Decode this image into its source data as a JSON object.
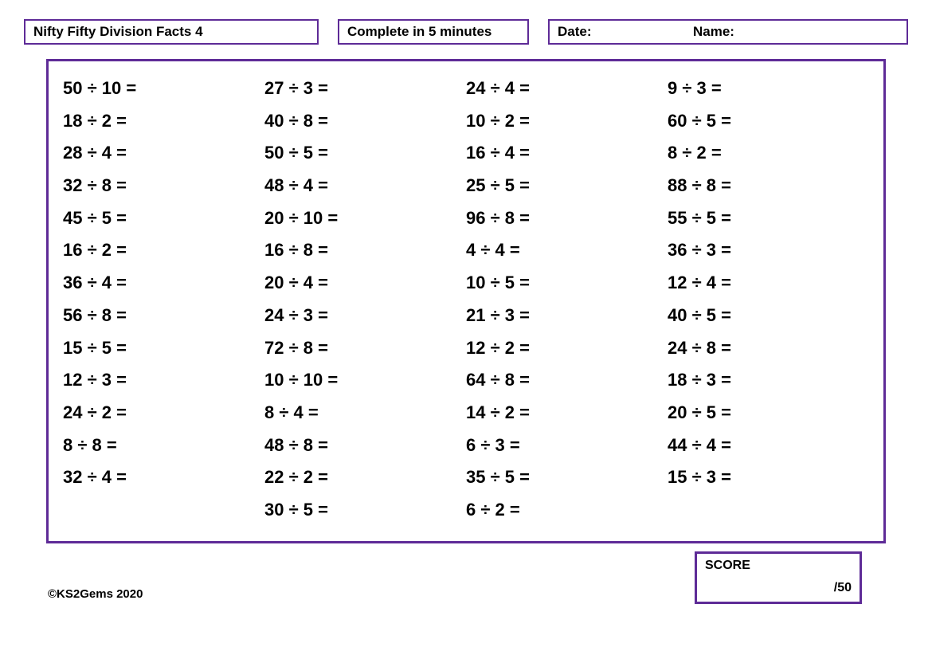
{
  "header": {
    "title": "Nifty Fifty Division Facts 4",
    "timer": "Complete in 5 minutes",
    "date_label": "Date:",
    "name_label": "Name:"
  },
  "worksheet": {
    "border_color": "#5e2b97",
    "background_color": "#ffffff",
    "text_color": "#000000",
    "font_family": "Comic Sans MS",
    "problem_fontsize": 22,
    "division_sign": "÷",
    "equals_sign": "=",
    "columns": [
      [
        {
          "a": 50,
          "b": 10
        },
        {
          "a": 18,
          "b": 2
        },
        {
          "a": 28,
          "b": 4
        },
        {
          "a": 32,
          "b": 8
        },
        {
          "a": 45,
          "b": 5
        },
        {
          "a": 16,
          "b": 2
        },
        {
          "a": 36,
          "b": 4
        },
        {
          "a": 56,
          "b": 8
        },
        {
          "a": 15,
          "b": 5
        },
        {
          "a": 12,
          "b": 3
        },
        {
          "a": 24,
          "b": 2
        },
        {
          "a": 8,
          "b": 8
        },
        {
          "a": 32,
          "b": 4
        }
      ],
      [
        {
          "a": 27,
          "b": 3
        },
        {
          "a": 40,
          "b": 8
        },
        {
          "a": 50,
          "b": 5
        },
        {
          "a": 48,
          "b": 4
        },
        {
          "a": 20,
          "b": 10
        },
        {
          "a": 16,
          "b": 8
        },
        {
          "a": 20,
          "b": 4
        },
        {
          "a": 24,
          "b": 3
        },
        {
          "a": 72,
          "b": 8
        },
        {
          "a": 10,
          "b": 10
        },
        {
          "a": 8,
          "b": 4
        },
        {
          "a": 48,
          "b": 8
        },
        {
          "a": 22,
          "b": 2
        },
        {
          "a": 30,
          "b": 5
        }
      ],
      [
        {
          "a": 24,
          "b": 4
        },
        {
          "a": 10,
          "b": 2
        },
        {
          "a": 16,
          "b": 4
        },
        {
          "a": 25,
          "b": 5
        },
        {
          "a": 96,
          "b": 8
        },
        {
          "a": 4,
          "b": 4
        },
        {
          "a": 10,
          "b": 5
        },
        {
          "a": 21,
          "b": 3
        },
        {
          "a": 12,
          "b": 2
        },
        {
          "a": 64,
          "b": 8
        },
        {
          "a": 14,
          "b": 2
        },
        {
          "a": 6,
          "b": 3
        },
        {
          "a": 35,
          "b": 5
        },
        {
          "a": 6,
          "b": 2
        }
      ],
      [
        {
          "a": 9,
          "b": 3
        },
        {
          "a": 60,
          "b": 5
        },
        {
          "a": 8,
          "b": 2
        },
        {
          "a": 88,
          "b": 8
        },
        {
          "a": 55,
          "b": 5
        },
        {
          "a": 36,
          "b": 3
        },
        {
          "a": 12,
          "b": 4
        },
        {
          "a": 40,
          "b": 5
        },
        {
          "a": 24,
          "b": 8
        },
        {
          "a": 18,
          "b": 3
        },
        {
          "a": 20,
          "b": 5
        },
        {
          "a": 44,
          "b": 4
        },
        {
          "a": 15,
          "b": 3
        }
      ]
    ]
  },
  "footer": {
    "copyright": "©KS2Gems 2020",
    "score_label": "SCORE",
    "score_total": "/50"
  }
}
